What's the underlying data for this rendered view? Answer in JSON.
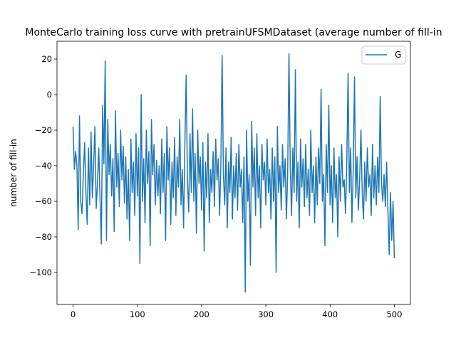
{
  "chart_data": {
    "type": "line",
    "title": "MonteCarlo training loss curve with pretrainUFSMDataset (average number of fill-in",
    "xlabel": "",
    "ylabel": "number of fill-in",
    "xlim": [
      -25,
      525
    ],
    "ylim": [
      -118,
      30
    ],
    "xticks": [
      0,
      100,
      200,
      300,
      400,
      500
    ],
    "yticks": [
      20,
      0,
      -20,
      -40,
      -60,
      -80,
      -100
    ],
    "grid": false,
    "legend": {
      "position": "top-right",
      "entries": [
        "G"
      ]
    },
    "series": [
      {
        "name": "G",
        "color": "#1f77b4",
        "points": [
          [
            0,
            -18
          ],
          [
            2,
            -42
          ],
          [
            4,
            -32
          ],
          [
            6,
            -40
          ],
          [
            8,
            -76
          ],
          [
            10,
            -12
          ],
          [
            12,
            -60
          ],
          [
            14,
            -67
          ],
          [
            16,
            -45
          ],
          [
            18,
            -27
          ],
          [
            20,
            -55
          ],
          [
            22,
            -73
          ],
          [
            24,
            -30
          ],
          [
            26,
            -62
          ],
          [
            28,
            -21
          ],
          [
            30,
            -58
          ],
          [
            32,
            -40
          ],
          [
            34,
            -18
          ],
          [
            36,
            -64
          ],
          [
            38,
            -50
          ],
          [
            40,
            -30
          ],
          [
            42,
            -59
          ],
          [
            44,
            -84
          ],
          [
            46,
            -6
          ],
          [
            48,
            -39
          ],
          [
            50,
            19
          ],
          [
            52,
            -82
          ],
          [
            54,
            -14
          ],
          [
            56,
            -45
          ],
          [
            58,
            -28
          ],
          [
            60,
            -57
          ],
          [
            62,
            -36
          ],
          [
            64,
            -77
          ],
          [
            66,
            -9
          ],
          [
            68,
            -52
          ],
          [
            70,
            -33
          ],
          [
            72,
            -63
          ],
          [
            74,
            -20
          ],
          [
            76,
            -48
          ],
          [
            78,
            -29
          ],
          [
            80,
            -61
          ],
          [
            82,
            -35
          ],
          [
            84,
            -70
          ],
          [
            86,
            -42
          ],
          [
            88,
            -82
          ],
          [
            90,
            -25
          ],
          [
            92,
            -55
          ],
          [
            94,
            -38
          ],
          [
            96,
            -68
          ],
          [
            98,
            -22
          ],
          [
            100,
            -57
          ],
          [
            102,
            -30
          ],
          [
            104,
            -95
          ],
          [
            106,
            0
          ],
          [
            108,
            -60
          ],
          [
            110,
            -36
          ],
          [
            112,
            -72
          ],
          [
            114,
            -20
          ],
          [
            116,
            -50
          ],
          [
            118,
            -32
          ],
          [
            120,
            -85
          ],
          [
            122,
            -14
          ],
          [
            124,
            -45
          ],
          [
            126,
            -28
          ],
          [
            128,
            -62
          ],
          [
            130,
            -37
          ],
          [
            132,
            -57
          ],
          [
            134,
            -40
          ],
          [
            136,
            -67
          ],
          [
            138,
            -25
          ],
          [
            140,
            -55
          ],
          [
            142,
            -33
          ],
          [
            144,
            -82
          ],
          [
            146,
            -18
          ],
          [
            148,
            -48
          ],
          [
            150,
            -30
          ],
          [
            152,
            -73
          ],
          [
            154,
            -38
          ],
          [
            156,
            -58
          ],
          [
            158,
            -24
          ],
          [
            160,
            -68
          ],
          [
            162,
            -35
          ],
          [
            164,
            -52
          ],
          [
            166,
            -14
          ],
          [
            168,
            -62
          ],
          [
            170,
            -42
          ],
          [
            172,
            -75
          ],
          [
            174,
            -28
          ],
          [
            176,
            11
          ],
          [
            178,
            -48
          ],
          [
            180,
            -66
          ],
          [
            182,
            -22
          ],
          [
            184,
            -55
          ],
          [
            186,
            -8
          ],
          [
            188,
            -60
          ],
          [
            190,
            -33
          ],
          [
            192,
            -78
          ],
          [
            194,
            -20
          ],
          [
            196,
            -50
          ],
          [
            198,
            -35
          ],
          [
            200,
            -65
          ],
          [
            202,
            -27
          ],
          [
            204,
            -88
          ],
          [
            206,
            -38
          ],
          [
            208,
            -58
          ],
          [
            210,
            -22
          ],
          [
            212,
            -72
          ],
          [
            214,
            -42
          ],
          [
            216,
            -55
          ],
          [
            218,
            -32
          ],
          [
            220,
            -63
          ],
          [
            222,
            -25
          ],
          [
            224,
            -48
          ],
          [
            226,
            -36
          ],
          [
            228,
            -68
          ],
          [
            230,
            -40
          ],
          [
            232,
            22
          ],
          [
            234,
            -45
          ],
          [
            236,
            -62
          ],
          [
            238,
            -30
          ],
          [
            240,
            -75
          ],
          [
            242,
            -38
          ],
          [
            244,
            -55
          ],
          [
            246,
            -24
          ],
          [
            248,
            -70
          ],
          [
            250,
            -40
          ],
          [
            252,
            -58
          ],
          [
            254,
            -33
          ],
          [
            256,
            -65
          ],
          [
            258,
            -28
          ],
          [
            260,
            -52
          ],
          [
            262,
            -42
          ],
          [
            264,
            -72
          ],
          [
            266,
            -35
          ],
          [
            268,
            -111
          ],
          [
            270,
            -20
          ],
          [
            272,
            -60
          ],
          [
            274,
            -45
          ],
          [
            276,
            -96
          ],
          [
            278,
            -15
          ],
          [
            280,
            -52
          ],
          [
            282,
            -30
          ],
          [
            284,
            -68
          ],
          [
            286,
            -22
          ],
          [
            288,
            -58
          ],
          [
            290,
            -40
          ],
          [
            292,
            -75
          ],
          [
            294,
            -28
          ],
          [
            296,
            -48
          ],
          [
            298,
            -38
          ],
          [
            300,
            -62
          ],
          [
            302,
            -25
          ],
          [
            304,
            -55
          ],
          [
            306,
            -42
          ],
          [
            308,
            -70
          ],
          [
            310,
            -30
          ],
          [
            312,
            -60
          ],
          [
            314,
            -35
          ],
          [
            316,
            -100
          ],
          [
            318,
            -18
          ],
          [
            320,
            -55
          ],
          [
            322,
            -40
          ],
          [
            324,
            -65
          ],
          [
            326,
            -28
          ],
          [
            328,
            -52
          ],
          [
            330,
            -36
          ],
          [
            332,
            -70
          ],
          [
            334,
            -44
          ],
          [
            336,
            23
          ],
          [
            338,
            -40
          ],
          [
            340,
            -68
          ],
          [
            342,
            -30
          ],
          [
            344,
            -55
          ],
          [
            346,
            14
          ],
          [
            348,
            -60
          ],
          [
            350,
            -38
          ],
          [
            352,
            -75
          ],
          [
            354,
            -25
          ],
          [
            356,
            -52
          ],
          [
            358,
            -36
          ],
          [
            360,
            -63
          ],
          [
            362,
            -28
          ],
          [
            364,
            -58
          ],
          [
            366,
            -42
          ],
          [
            368,
            -68
          ],
          [
            370,
            -20
          ],
          [
            372,
            -55
          ],
          [
            374,
            -40
          ],
          [
            376,
            -72
          ],
          [
            378,
            -35
          ],
          [
            380,
            -62
          ],
          [
            382,
            -30
          ],
          [
            384,
            -50
          ],
          [
            386,
            3
          ],
          [
            388,
            -60
          ],
          [
            390,
            -45
          ],
          [
            392,
            -85
          ],
          [
            394,
            -28
          ],
          [
            396,
            -55
          ],
          [
            398,
            -6
          ],
          [
            400,
            -62
          ],
          [
            402,
            -40
          ],
          [
            404,
            -72
          ],
          [
            406,
            -30
          ],
          [
            408,
            -58
          ],
          [
            410,
            -45
          ],
          [
            412,
            -80
          ],
          [
            414,
            -35
          ],
          [
            416,
            -60
          ],
          [
            418,
            -28
          ],
          [
            420,
            -52
          ],
          [
            422,
            -48
          ],
          [
            424,
            -67
          ],
          [
            426,
            -38
          ],
          [
            428,
            12
          ],
          [
            430,
            -55
          ],
          [
            432,
            -30
          ],
          [
            434,
            -72
          ],
          [
            436,
            -42
          ],
          [
            438,
            10
          ],
          [
            440,
            -58
          ],
          [
            442,
            -35
          ],
          [
            444,
            -65
          ],
          [
            446,
            -48
          ],
          [
            448,
            -20
          ],
          [
            450,
            -55
          ],
          [
            452,
            -70
          ],
          [
            454,
            -38
          ],
          [
            456,
            -60
          ],
          [
            458,
            -30
          ],
          [
            460,
            -52
          ],
          [
            462,
            -45
          ],
          [
            464,
            -68
          ],
          [
            466,
            -28
          ],
          [
            468,
            -58
          ],
          [
            470,
            -40
          ],
          [
            472,
            -62
          ],
          [
            474,
            -35
          ],
          [
            476,
            -55
          ],
          [
            478,
            -1
          ],
          [
            480,
            -50
          ],
          [
            482,
            -60
          ],
          [
            484,
            -45
          ],
          [
            486,
            -63
          ],
          [
            488,
            -38
          ],
          [
            490,
            -65
          ],
          [
            492,
            -90
          ],
          [
            494,
            -55
          ],
          [
            496,
            -82
          ],
          [
            498,
            -60
          ],
          [
            500,
            -92
          ]
        ]
      }
    ]
  }
}
